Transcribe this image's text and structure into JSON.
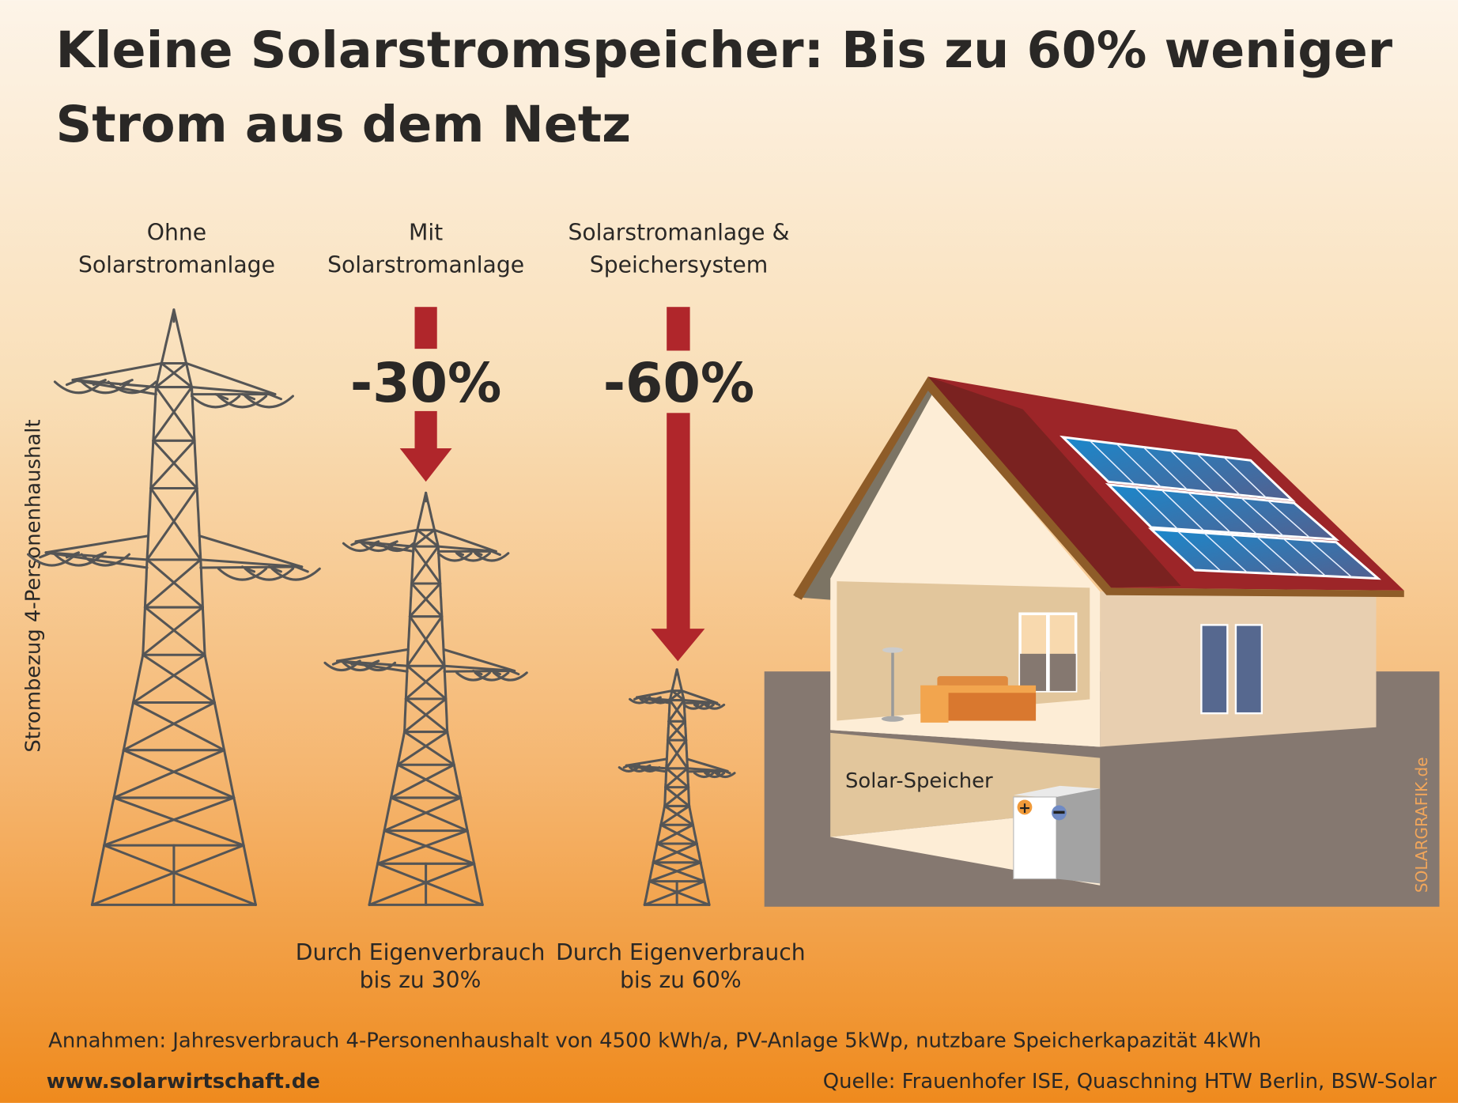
{
  "title": {
    "line1": "Kleine Solarstromspeicher: Bis zu 60% weniger",
    "line2": "Strom aus dem Netz"
  },
  "y_axis_label": "Strombezug 4-Personenhaushalt",
  "columns": [
    {
      "header1": "Ohne",
      "header2": "Solarstromanlage",
      "reduction": "",
      "footer1": "",
      "footer2": ""
    },
    {
      "header1": "Mit",
      "header2": "Solarstromanlage",
      "reduction": "-30%",
      "footer1": "Durch Eigenverbrauch",
      "footer2": "bis zu 30%"
    },
    {
      "header1": "Solarstromanlage &",
      "header2": "Speichersystem",
      "reduction": "-60%",
      "footer1": "Durch Eigenverbrauch",
      "footer2": "bis zu 60%"
    }
  ],
  "house": {
    "storage_label": "Solar-Speicher",
    "watermark": "SOLARGRAFIK.de"
  },
  "assumptions": "Annahmen: Jahresverbrauch 4-Personenhaushalt von 4500 kWh/a, PV-Anlage 5kWp, nutzbare Speicherkapazität 4kWh",
  "website": "www.solarwirtschaft.de",
  "source": "Quelle: Frauenhofer ISE, Quaschning HTW Berlin, BSW-Solar",
  "colors": {
    "arrow": "#b0262b",
    "text": "#2a2826",
    "ground": "#857870",
    "roof": "#9c2528"
  }
}
